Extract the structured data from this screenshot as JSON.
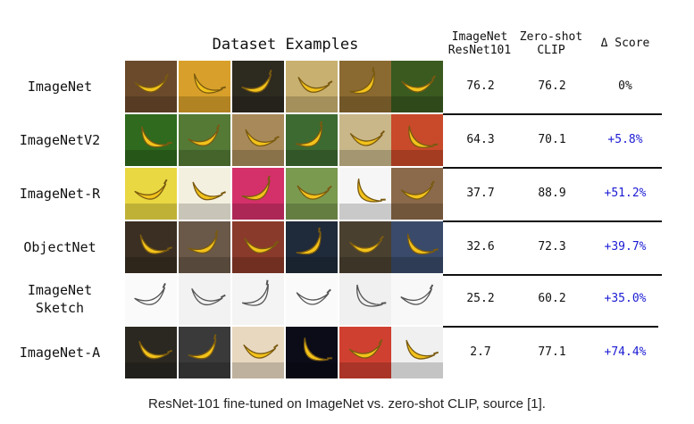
{
  "headers": {
    "dataset_examples": "Dataset Examples",
    "resnet": [
      "ImageNet",
      "ResNet101"
    ],
    "clip": [
      "Zero-shot",
      "CLIP"
    ],
    "delta": "Δ Score"
  },
  "rows": [
    {
      "label": [
        "ImageNet"
      ],
      "resnet": "76.2",
      "clip": "76.2",
      "delta": "0%"
    },
    {
      "label": [
        "ImageNetV2"
      ],
      "resnet": "64.3",
      "clip": "70.1",
      "delta": "+5.8%"
    },
    {
      "label": [
        "ImageNet-R"
      ],
      "resnet": "37.7",
      "clip": "88.9",
      "delta": "+51.2%"
    },
    {
      "label": [
        "ObjectNet"
      ],
      "resnet": "32.6",
      "clip": "72.3",
      "delta": "+39.7%"
    },
    {
      "label": [
        "ImageNet",
        "Sketch"
      ],
      "resnet": "25.2",
      "clip": "60.2",
      "delta": "+35.0%"
    },
    {
      "label": [
        "ImageNet-A"
      ],
      "resnet": "2.7",
      "clip": "77.1",
      "delta": "+74.4%"
    }
  ],
  "caption": "ResNet-101 fine-tuned on ImageNet vs. zero-shot CLIP, source [1].",
  "colors": {
    "delta_positive": "#1b1bd4",
    "banana": "#f2c21b"
  },
  "tile_icons": [
    [
      "banana-photo",
      "banana-photo",
      "banana-photo",
      "banana-photo",
      "banana-photo",
      "banana-photo"
    ],
    [
      "banana-photo",
      "banana-photo",
      "banana-photo",
      "banana-photo",
      "banana-photo",
      "banana-photo"
    ],
    [
      "banana-art",
      "banana-art",
      "banana-art",
      "banana-art",
      "banana-art",
      "banana-art"
    ],
    [
      "banana-photo",
      "banana-photo",
      "banana-photo",
      "banana-photo",
      "banana-photo",
      "banana-photo"
    ],
    [
      "banana-sketch",
      "banana-sketch",
      "banana-sketch",
      "banana-sketch",
      "banana-sketch",
      "banana-sketch"
    ],
    [
      "banana-photo",
      "banana-photo",
      "banana-photo",
      "banana-photo",
      "banana-photo",
      "banana-photo"
    ]
  ]
}
